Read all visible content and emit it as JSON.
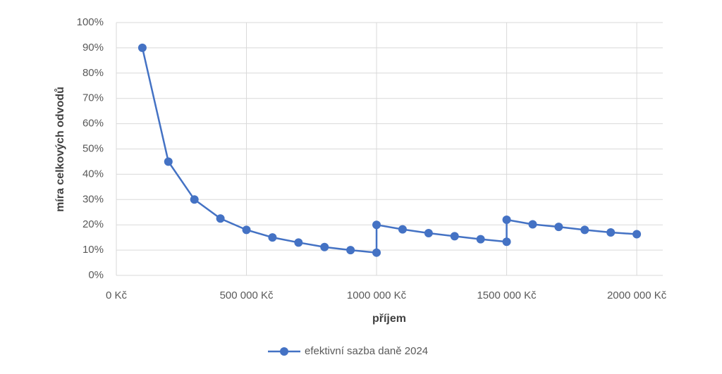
{
  "chart_data": {
    "type": "line",
    "x_label": "příjem",
    "y_label": "míra celkových odvodů",
    "x": [
      100000,
      200000,
      300000,
      400000,
      500000,
      600000,
      700000,
      800000,
      900000,
      1000000,
      1000000,
      1100000,
      1200000,
      1300000,
      1400000,
      1500000,
      1500000,
      1600000,
      1700000,
      1800000,
      1900000,
      2000000
    ],
    "series": [
      {
        "name": "efektivní sazba daně 2024",
        "color": "#4472c4",
        "values": [
          90,
          45,
          30,
          22.5,
          18,
          15,
          13,
          11.2,
          10,
          9,
          20,
          18.2,
          16.7,
          15.5,
          14.3,
          13.3,
          22,
          20.2,
          19.2,
          18,
          17,
          16.3
        ]
      }
    ],
    "xlim": [
      0,
      2100000
    ],
    "xticks": [
      {
        "value": 0,
        "label": "0 Kč"
      },
      {
        "value": 500000,
        "label": "500 000 Kč"
      },
      {
        "value": 1000000,
        "label": "1000 000 Kč"
      },
      {
        "value": 1500000,
        "label": "1500 000 Kč"
      },
      {
        "value": 2000000,
        "label": "2000 000 Kč"
      }
    ],
    "ylim": [
      0,
      100
    ],
    "yticks": [
      {
        "value": 0,
        "label": "0%"
      },
      {
        "value": 10,
        "label": "10%"
      },
      {
        "value": 20,
        "label": "20%"
      },
      {
        "value": 30,
        "label": "30%"
      },
      {
        "value": 40,
        "label": "40%"
      },
      {
        "value": 50,
        "label": "50%"
      },
      {
        "value": 60,
        "label": "60%"
      },
      {
        "value": 70,
        "label": "70%"
      },
      {
        "value": 80,
        "label": "80%"
      },
      {
        "value": 90,
        "label": "90%"
      },
      {
        "value": 100,
        "label": "100%"
      }
    ],
    "grid": true,
    "legend": "bottom"
  }
}
